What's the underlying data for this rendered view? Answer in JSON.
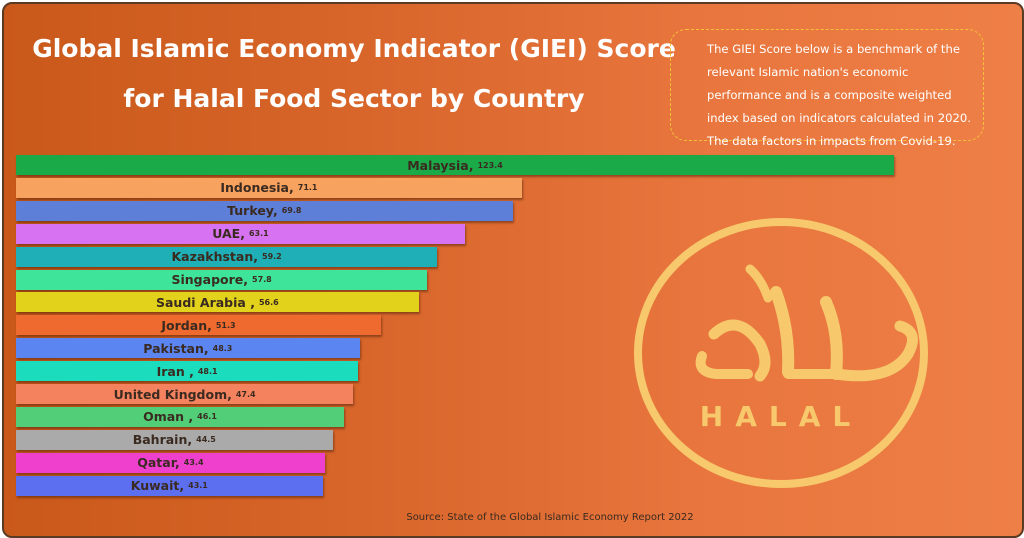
{
  "title_line1": "Global Islamic Economy Indicator (GIEI) Score",
  "title_line2": "for Halal Food Sector by Country",
  "note": "The GIEI Score below is a benchmark of the relevant Islamic nation's economic performance and is a composite weighted index based on indicators calculated in 2020. The data factors in impacts from Covid-19.",
  "source": "Source: State of the Global Islamic Economy Report 2022",
  "logo_text": "HALAL",
  "chart_data": {
    "type": "bar",
    "orientation": "horizontal",
    "title": "Global Islamic Economy Indicator (GIEI) Score for Halal Food Sector by Country",
    "categories": [
      "Malaysia",
      "Indonesia",
      "Turkey",
      "UAE",
      "Kazakhstan",
      "Singapore",
      "Saudi Arabia",
      "Jordan",
      "Pakistan",
      "Iran",
      "United Kingdom",
      "Oman",
      "Bahrain",
      "Qatar",
      "Kuwait"
    ],
    "labels": [
      "Malaysia, ",
      "Indonesia, ",
      "Turkey, ",
      "UAE, ",
      "Kazakhstan, ",
      "Singapore, ",
      "Saudi Arabia , ",
      "Jordan, ",
      "Pakistan, ",
      "Iran , ",
      "United Kingdom, ",
      "Oman , ",
      "Bahrain, ",
      "Qatar, ",
      "Kuwait, "
    ],
    "values": [
      123.4,
      71.1,
      69.8,
      63.1,
      59.2,
      57.8,
      56.6,
      51.3,
      48.3,
      48.1,
      47.4,
      46.1,
      44.5,
      43.4,
      43.1
    ],
    "colors": [
      "#1aaa48",
      "#f7a25f",
      "#5e7fd8",
      "#d773f2",
      "#1eb0b6",
      "#3ee49a",
      "#e2d21c",
      "#ef6a2e",
      "#5b86f2",
      "#1bdcbc",
      "#f5825e",
      "#52cd78",
      "#aaaaaa",
      "#ee3fcd",
      "#5c6ff0"
    ],
    "xlim": [
      0,
      123.4
    ],
    "grid": false,
    "legend": "none"
  }
}
